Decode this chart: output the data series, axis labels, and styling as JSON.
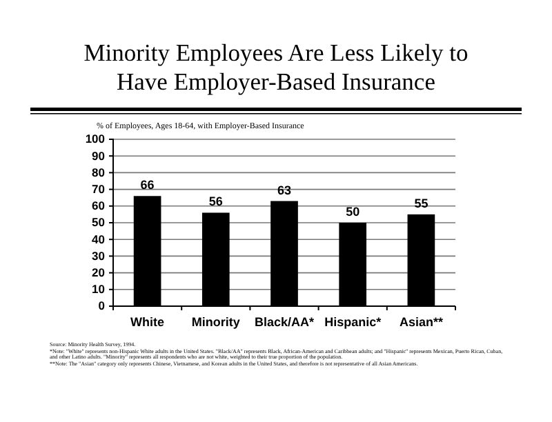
{
  "chart_data": {
    "type": "bar",
    "title": "Minority Employees Are Less Likely to Have Employer-Based Insurance",
    "ylabel": "% of Employees, Ages 18-64, with Employer-Based Insurance",
    "categories": [
      "White",
      "Minority",
      "Black/AA*",
      "Hispanic*",
      "Asian**"
    ],
    "values": [
      66,
      56,
      63,
      50,
      55
    ],
    "color": "#000000",
    "ylim": [
      0,
      100
    ],
    "yticks": [
      0,
      10,
      20,
      30,
      40,
      50,
      60,
      70,
      80,
      90,
      100
    ],
    "grid": "y",
    "data_labels": true,
    "annotations": [
      "Source: Minority Health Survey, 1994.",
      "*Note: \"White\" represents non-Hispanic White adults in the United States. \"Black/AA\" represents Black, African-American and Caribbean adults; and \"Hispanic\" represents Mexican, Puerto Rican, Cuban, and other Latino adults. \"Minority\" represents all respondents who are not white, weighted to their true proportion of the population.",
      "**Note: The \"Asian\" category only represents Chinese, Vietnamese, and Korean adults in the United States, and therefore is not representative of all Asian Americans."
    ]
  }
}
